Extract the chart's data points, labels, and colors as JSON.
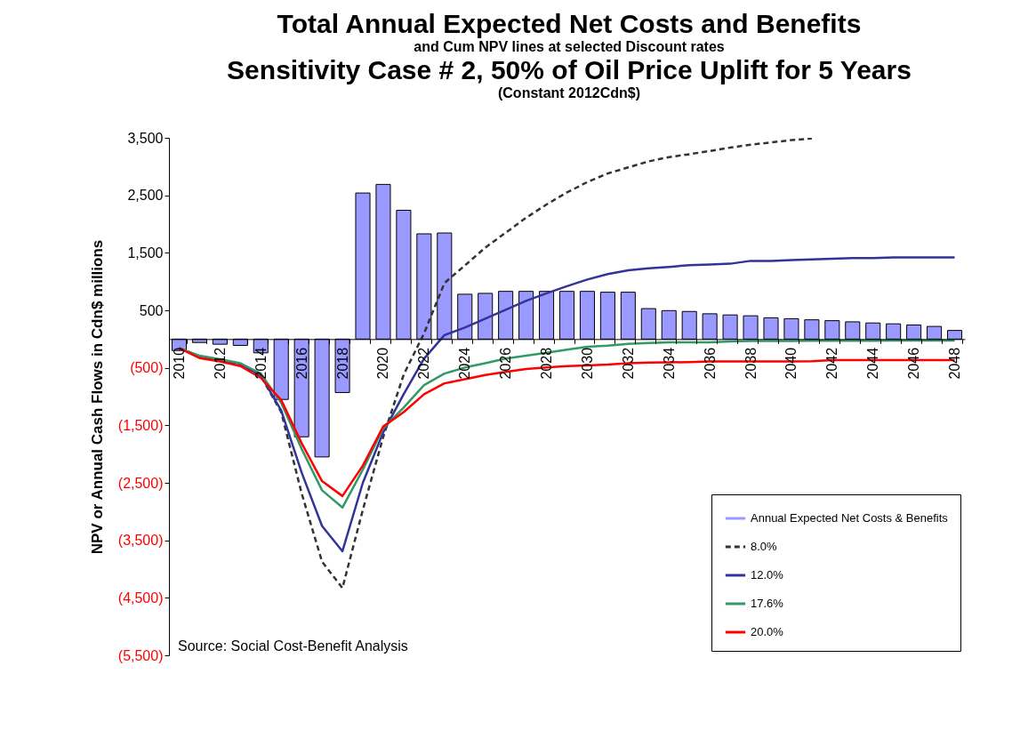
{
  "chart_data": {
    "type": "bar",
    "title": "Total Annual Expected Net Costs and Benefits",
    "subtitle": "and Cum NPV lines at selected Discount rates",
    "annotations": [
      "Sensitivity Case # 2, 50% of Oil Price Uplift for 5 Years",
      "(Constant 2012Cdn$)",
      "Source:  Social Cost-Benefit Analysis"
    ],
    "ylabel": "NPV or Annual Cash Flows in Cdn$ millions",
    "categories": [
      "2010",
      null,
      "2012",
      null,
      "2014",
      null,
      "2016",
      null,
      "2018",
      null,
      "2020",
      null,
      "2022",
      null,
      "2024",
      null,
      "2026",
      null,
      "2028",
      null,
      "2030",
      null,
      "2032",
      null,
      "2034",
      null,
      "2036",
      null,
      "2038",
      null,
      "2040",
      null,
      "2042",
      null,
      "2044",
      null,
      "2046",
      null,
      "2048"
    ],
    "ylim": [
      -5500,
      3500
    ],
    "yticks": [
      {
        "value": 3500,
        "label": "3,500"
      },
      {
        "value": 2500,
        "label": "2,500"
      },
      {
        "value": 1500,
        "label": "1,500"
      },
      {
        "value": 500,
        "label": "500"
      },
      {
        "value": -500,
        "label": "(500)"
      },
      {
        "value": -1500,
        "label": "(1,500)"
      },
      {
        "value": -2500,
        "label": "(2,500)"
      },
      {
        "value": -3500,
        "label": "(3,500)"
      },
      {
        "value": -4500,
        "label": "(4,500)"
      },
      {
        "value": -5500,
        "label": "(5,500)"
      }
    ],
    "legend": "bottom right",
    "series": [
      {
        "name": "Annual Expected Net Costs & Benefits",
        "color": "#9999ff",
        "values": [
          -200,
          -60,
          -90,
          -110,
          -240,
          -1050,
          -1700,
          -2050,
          -930,
          2540,
          2690,
          2240,
          1830,
          1845,
          780,
          795,
          830,
          830,
          830,
          830,
          830,
          815,
          815,
          530,
          495,
          480,
          440,
          420,
          405,
          370,
          355,
          335,
          320,
          300,
          280,
          265,
          245,
          220,
          150
        ]
      },
      {
        "name": "8.0%",
        "type": "line",
        "line_style": "dashed",
        "color": "#333333",
        "values": [
          -160,
          -300,
          -370,
          -440,
          -640,
          -1270,
          -2680,
          -3870,
          -4330,
          -2970,
          -1700,
          -620,
          100,
          975,
          1280,
          1590,
          1850,
          2110,
          2340,
          2550,
          2730,
          2880,
          2985,
          3090,
          3165,
          3215,
          3270,
          3330,
          3380,
          3420,
          3460,
          3490,
          null,
          null,
          null,
          null,
          null,
          null,
          null
        ]
      },
      {
        "name": "12.0%",
        "type": "line",
        "line_style": "solid",
        "color": "#333399",
        "values": [
          -160,
          -300,
          -360,
          -430,
          -630,
          -1240,
          -2320,
          -3250,
          -3690,
          -2500,
          -1620,
          -960,
          -340,
          70,
          200,
          355,
          510,
          665,
          795,
          920,
          1035,
          1130,
          1195,
          1230,
          1255,
          1285,
          1295,
          1310,
          1360,
          1360,
          1375,
          1385,
          1395,
          1410,
          1410,
          1420,
          1420,
          1420,
          1420
        ]
      },
      {
        "name": "17.6%",
        "type": "line",
        "line_style": "solid",
        "color": "#339966",
        "values": [
          -160,
          -290,
          -350,
          -420,
          -600,
          -1110,
          -1910,
          -2630,
          -2930,
          -2270,
          -1550,
          -1190,
          -800,
          -600,
          -495,
          -420,
          -340,
          -290,
          -240,
          -185,
          -135,
          -115,
          -85,
          -70,
          -55,
          -55,
          -55,
          -40,
          -35,
          -35,
          -35,
          -30,
          -30,
          -30,
          -30,
          -25,
          -25,
          -25,
          -25
        ]
      },
      {
        "name": "20.0%",
        "type": "line",
        "line_style": "solid",
        "color": "#ff0000",
        "values": [
          -160,
          -330,
          -390,
          -470,
          -675,
          -1060,
          -1810,
          -2470,
          -2730,
          -2200,
          -1520,
          -1270,
          -960,
          -770,
          -700,
          -625,
          -570,
          -520,
          -495,
          -470,
          -460,
          -445,
          -420,
          -410,
          -405,
          -400,
          -390,
          -390,
          -390,
          -390,
          -390,
          -385,
          -365,
          -365,
          -365,
          -365,
          -365,
          -365,
          -365
        ]
      }
    ]
  }
}
